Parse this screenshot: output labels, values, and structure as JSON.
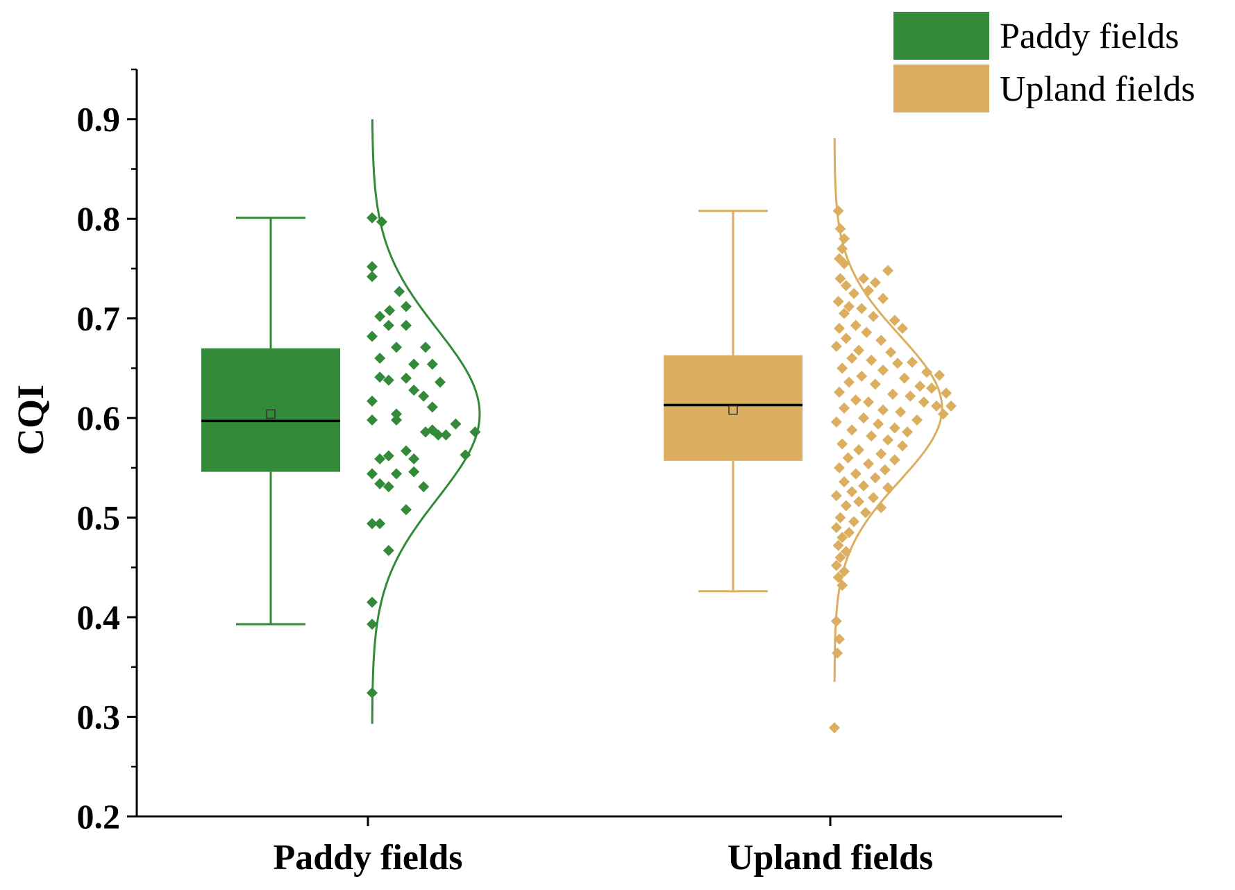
{
  "chart_data": {
    "type": "raincloud",
    "ylabel": "CQI",
    "xlabel": "",
    "ylim": [
      0.2,
      0.95
    ],
    "yticks": [
      0.2,
      0.3,
      0.4,
      0.5,
      0.6,
      0.7,
      0.8,
      0.9
    ],
    "ytick_labels": [
      "0.2",
      "0.3",
      "0.4",
      "0.5",
      "0.6",
      "0.7",
      "0.8",
      "0.9"
    ],
    "categories": [
      "Paddy fields",
      "Upland fields"
    ],
    "legend": {
      "placement": "top-right",
      "entries": [
        "Paddy fields",
        "Upland fields"
      ]
    },
    "series": [
      {
        "name": "Paddy fields",
        "color": "#338a38",
        "box": {
          "whisker_low": 0.393,
          "q1": 0.546,
          "median": 0.597,
          "q3": 0.67,
          "whisker_high": 0.801,
          "mean": 0.604
        },
        "curve": {
          "mean": 0.604,
          "sd": 0.085,
          "min": 0.293,
          "max": 0.9
        },
        "points": [
          [
            0.0,
            0.801
          ],
          [
            0.1,
            0.797
          ],
          [
            0.0,
            0.752
          ],
          [
            0.0,
            0.742
          ],
          [
            0.28,
            0.727
          ],
          [
            0.35,
            0.712
          ],
          [
            0.18,
            0.708
          ],
          [
            0.08,
            0.702
          ],
          [
            0.17,
            0.693
          ],
          [
            0.35,
            0.693
          ],
          [
            0.0,
            0.682
          ],
          [
            0.25,
            0.671
          ],
          [
            0.55,
            0.671
          ],
          [
            0.08,
            0.66
          ],
          [
            0.43,
            0.654
          ],
          [
            0.62,
            0.654
          ],
          [
            0.08,
            0.641
          ],
          [
            0.17,
            0.638
          ],
          [
            0.35,
            0.64
          ],
          [
            0.7,
            0.636
          ],
          [
            0.43,
            0.628
          ],
          [
            0.53,
            0.622
          ],
          [
            0.0,
            0.617
          ],
          [
            0.62,
            0.611
          ],
          [
            0.25,
            0.604
          ],
          [
            0.0,
            0.598
          ],
          [
            0.25,
            0.598
          ],
          [
            0.86,
            0.594
          ],
          [
            0.62,
            0.588
          ],
          [
            0.55,
            0.586
          ],
          [
            0.68,
            0.583
          ],
          [
            0.76,
            0.583
          ],
          [
            1.06,
            0.586
          ],
          [
            0.35,
            0.567
          ],
          [
            0.43,
            0.559
          ],
          [
            0.17,
            0.562
          ],
          [
            0.08,
            0.559
          ],
          [
            0.96,
            0.563
          ],
          [
            0.43,
            0.546
          ],
          [
            0.0,
            0.544
          ],
          [
            0.25,
            0.544
          ],
          [
            0.08,
            0.534
          ],
          [
            0.17,
            0.531
          ],
          [
            0.53,
            0.531
          ],
          [
            0.35,
            0.508
          ],
          [
            0.0,
            0.494
          ],
          [
            0.08,
            0.494
          ],
          [
            0.17,
            0.467
          ],
          [
            0.0,
            0.415
          ],
          [
            0.0,
            0.393
          ],
          [
            0.0,
            0.324
          ]
        ]
      },
      {
        "name": "Upland fields",
        "color": "#dcae5f",
        "box": {
          "whisker_low": 0.426,
          "q1": 0.557,
          "median": 0.613,
          "q3": 0.663,
          "whisker_high": 0.808,
          "mean": 0.608
        },
        "curve": {
          "mean": 0.61,
          "sd": 0.073,
          "min": 0.335,
          "max": 0.881
        },
        "points": [
          [
            0.04,
            0.808
          ],
          [
            0.06,
            0.79
          ],
          [
            0.1,
            0.78
          ],
          [
            0.08,
            0.77
          ],
          [
            0.05,
            0.76
          ],
          [
            0.1,
            0.755
          ],
          [
            0.55,
            0.748
          ],
          [
            0.06,
            0.74
          ],
          [
            0.3,
            0.74
          ],
          [
            0.12,
            0.733
          ],
          [
            0.42,
            0.736
          ],
          [
            0.2,
            0.725
          ],
          [
            0.35,
            0.728
          ],
          [
            0.5,
            0.72
          ],
          [
            0.04,
            0.717
          ],
          [
            0.15,
            0.712
          ],
          [
            0.28,
            0.71
          ],
          [
            0.1,
            0.705
          ],
          [
            0.4,
            0.702
          ],
          [
            0.62,
            0.698
          ],
          [
            0.05,
            0.69
          ],
          [
            0.22,
            0.693
          ],
          [
            0.7,
            0.69
          ],
          [
            0.33,
            0.686
          ],
          [
            0.12,
            0.68
          ],
          [
            0.48,
            0.678
          ],
          [
            0.02,
            0.672
          ],
          [
            0.25,
            0.668
          ],
          [
            0.58,
            0.666
          ],
          [
            0.18,
            0.66
          ],
          [
            0.38,
            0.658
          ],
          [
            0.65,
            0.655
          ],
          [
            0.8,
            0.656
          ],
          [
            0.08,
            0.65
          ],
          [
            0.5,
            0.648
          ],
          [
            0.95,
            0.646
          ],
          [
            0.28,
            0.642
          ],
          [
            0.72,
            0.64
          ],
          [
            1.08,
            0.643
          ],
          [
            0.15,
            0.636
          ],
          [
            0.42,
            0.634
          ],
          [
            0.88,
            0.632
          ],
          [
            1.0,
            0.63
          ],
          [
            0.05,
            0.626
          ],
          [
            0.6,
            0.624
          ],
          [
            0.78,
            0.622
          ],
          [
            1.15,
            0.625
          ],
          [
            0.22,
            0.618
          ],
          [
            0.35,
            0.616
          ],
          [
            0.92,
            0.616
          ],
          [
            1.05,
            0.612
          ],
          [
            1.2,
            0.612
          ],
          [
            0.1,
            0.61
          ],
          [
            0.5,
            0.608
          ],
          [
            0.68,
            0.606
          ],
          [
            1.12,
            0.604
          ],
          [
            0.3,
            0.6
          ],
          [
            0.85,
            0.598
          ],
          [
            0.02,
            0.596
          ],
          [
            0.45,
            0.594
          ],
          [
            0.62,
            0.59
          ],
          [
            0.18,
            0.588
          ],
          [
            0.75,
            0.586
          ],
          [
            0.38,
            0.582
          ],
          [
            0.55,
            0.578
          ],
          [
            0.08,
            0.574
          ],
          [
            0.7,
            0.572
          ],
          [
            0.25,
            0.568
          ],
          [
            0.48,
            0.564
          ],
          [
            0.14,
            0.56
          ],
          [
            0.62,
            0.558
          ],
          [
            0.35,
            0.554
          ],
          [
            0.05,
            0.55
          ],
          [
            0.52,
            0.548
          ],
          [
            0.22,
            0.544
          ],
          [
            0.42,
            0.54
          ],
          [
            0.1,
            0.536
          ],
          [
            0.3,
            0.532
          ],
          [
            0.55,
            0.53
          ],
          [
            0.18,
            0.526
          ],
          [
            0.02,
            0.522
          ],
          [
            0.4,
            0.52
          ],
          [
            0.25,
            0.516
          ],
          [
            0.12,
            0.512
          ],
          [
            0.48,
            0.51
          ],
          [
            0.32,
            0.505
          ],
          [
            0.06,
            0.5
          ],
          [
            0.2,
            0.496
          ],
          [
            0.02,
            0.49
          ],
          [
            0.15,
            0.485
          ],
          [
            0.08,
            0.48
          ],
          [
            0.04,
            0.472
          ],
          [
            0.12,
            0.466
          ],
          [
            0.06,
            0.46
          ],
          [
            0.02,
            0.452
          ],
          [
            0.1,
            0.446
          ],
          [
            0.04,
            0.44
          ],
          [
            0.08,
            0.432
          ],
          [
            0.02,
            0.396
          ],
          [
            0.05,
            0.378
          ],
          [
            0.03,
            0.364
          ],
          [
            0.0,
            0.289
          ]
        ]
      }
    ]
  }
}
